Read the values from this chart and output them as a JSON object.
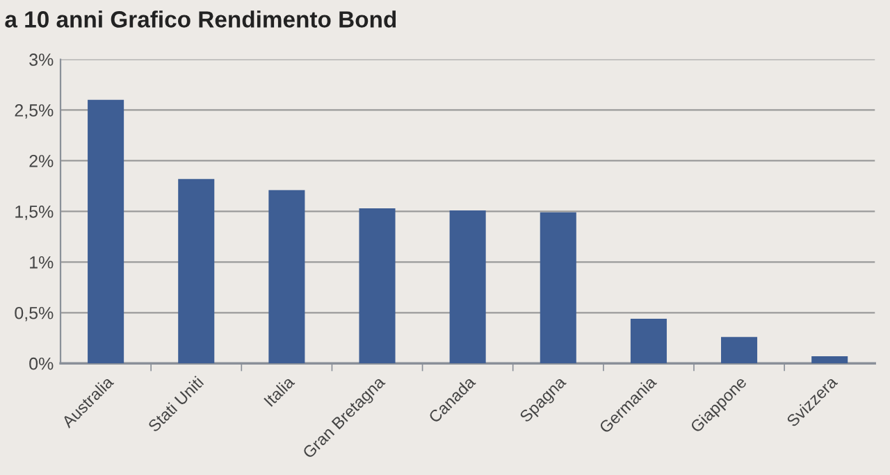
{
  "chart_data": {
    "type": "bar",
    "title": "a 10 anni Grafico Rendimento Bond",
    "categories": [
      "Australia",
      "Stati Uniti",
      "Italia",
      "Gran Bretagna",
      "Canada",
      "Spagna",
      "Germania",
      "Giappone",
      "Svizzera"
    ],
    "values": [
      2.6,
      1.82,
      1.71,
      1.53,
      1.51,
      1.49,
      0.44,
      0.26,
      0.07
    ],
    "color": "#3e5e94",
    "ylim": [
      0,
      3
    ],
    "yticks": [
      {
        "value": 0,
        "label": "0%"
      },
      {
        "value": 0.5,
        "label": "0,5%"
      },
      {
        "value": 1,
        "label": "1%"
      },
      {
        "value": 1.5,
        "label": "1,5%"
      },
      {
        "value": 2,
        "label": "2%"
      },
      {
        "value": 2.5,
        "label": "2,5%"
      },
      {
        "value": 3,
        "label": "3%"
      }
    ],
    "grid": "y"
  }
}
